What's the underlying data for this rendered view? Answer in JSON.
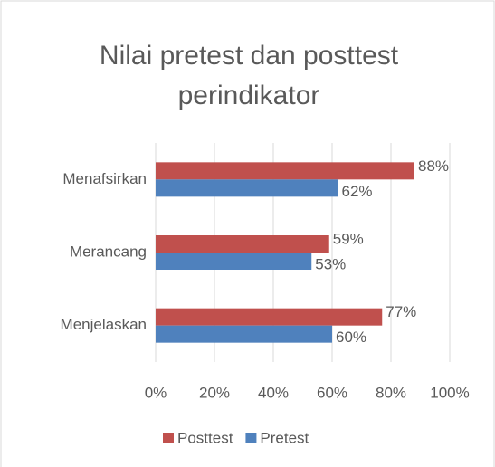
{
  "chart_data": {
    "type": "hbar",
    "title": "Nilai pretest dan posttest perindikator",
    "categories": [
      "Menafsirkan",
      "Merancang",
      "Menjelaskan"
    ],
    "series": [
      {
        "name": "Posttest",
        "color": "#c0504d",
        "values": [
          88,
          59,
          77
        ],
        "value_labels": [
          "88%",
          "59%",
          "77%"
        ]
      },
      {
        "name": "Pretest",
        "color": "#4f81bd",
        "values": [
          62,
          53,
          60
        ],
        "value_labels": [
          "62%",
          "53%",
          "60%"
        ]
      }
    ],
    "xlim": [
      0,
      100
    ],
    "xticks": [
      {
        "value": 0,
        "label": "0%"
      },
      {
        "value": 20,
        "label": "20%"
      },
      {
        "value": 40,
        "label": "40%"
      },
      {
        "value": 60,
        "label": "60%"
      },
      {
        "value": 80,
        "label": "80%"
      },
      {
        "value": 100,
        "label": "100%"
      }
    ],
    "grid": true,
    "legend": "bottom"
  }
}
